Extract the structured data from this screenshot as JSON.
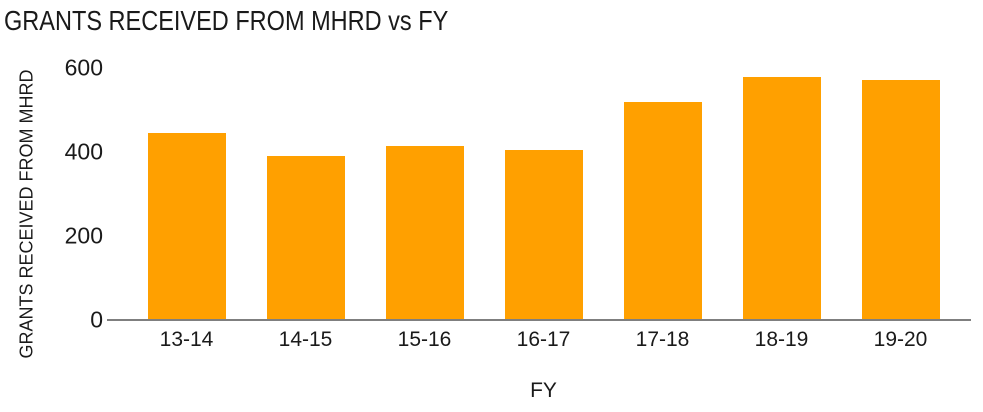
{
  "chart_data": {
    "type": "bar",
    "title": "GRANTS RECEIVED FROM MHRD vs FY",
    "xlabel": "FY",
    "ylabel": "GRANTS RECEIVED FROM MHRD",
    "categories": [
      "13-14",
      "14-15",
      "15-16",
      "16-17",
      "17-18",
      "18-19",
      "19-20"
    ],
    "values": [
      445,
      390,
      415,
      405,
      520,
      578,
      572
    ],
    "yticks": [
      0,
      200,
      400,
      600
    ],
    "ylim": [
      0,
      600
    ],
    "grid": "off",
    "legend": "none",
    "bar_color": "#FFA000",
    "axis_line_color": "#7F7F7F",
    "text_color": "#1A1A1A",
    "background_color": "#FFFFFF"
  }
}
